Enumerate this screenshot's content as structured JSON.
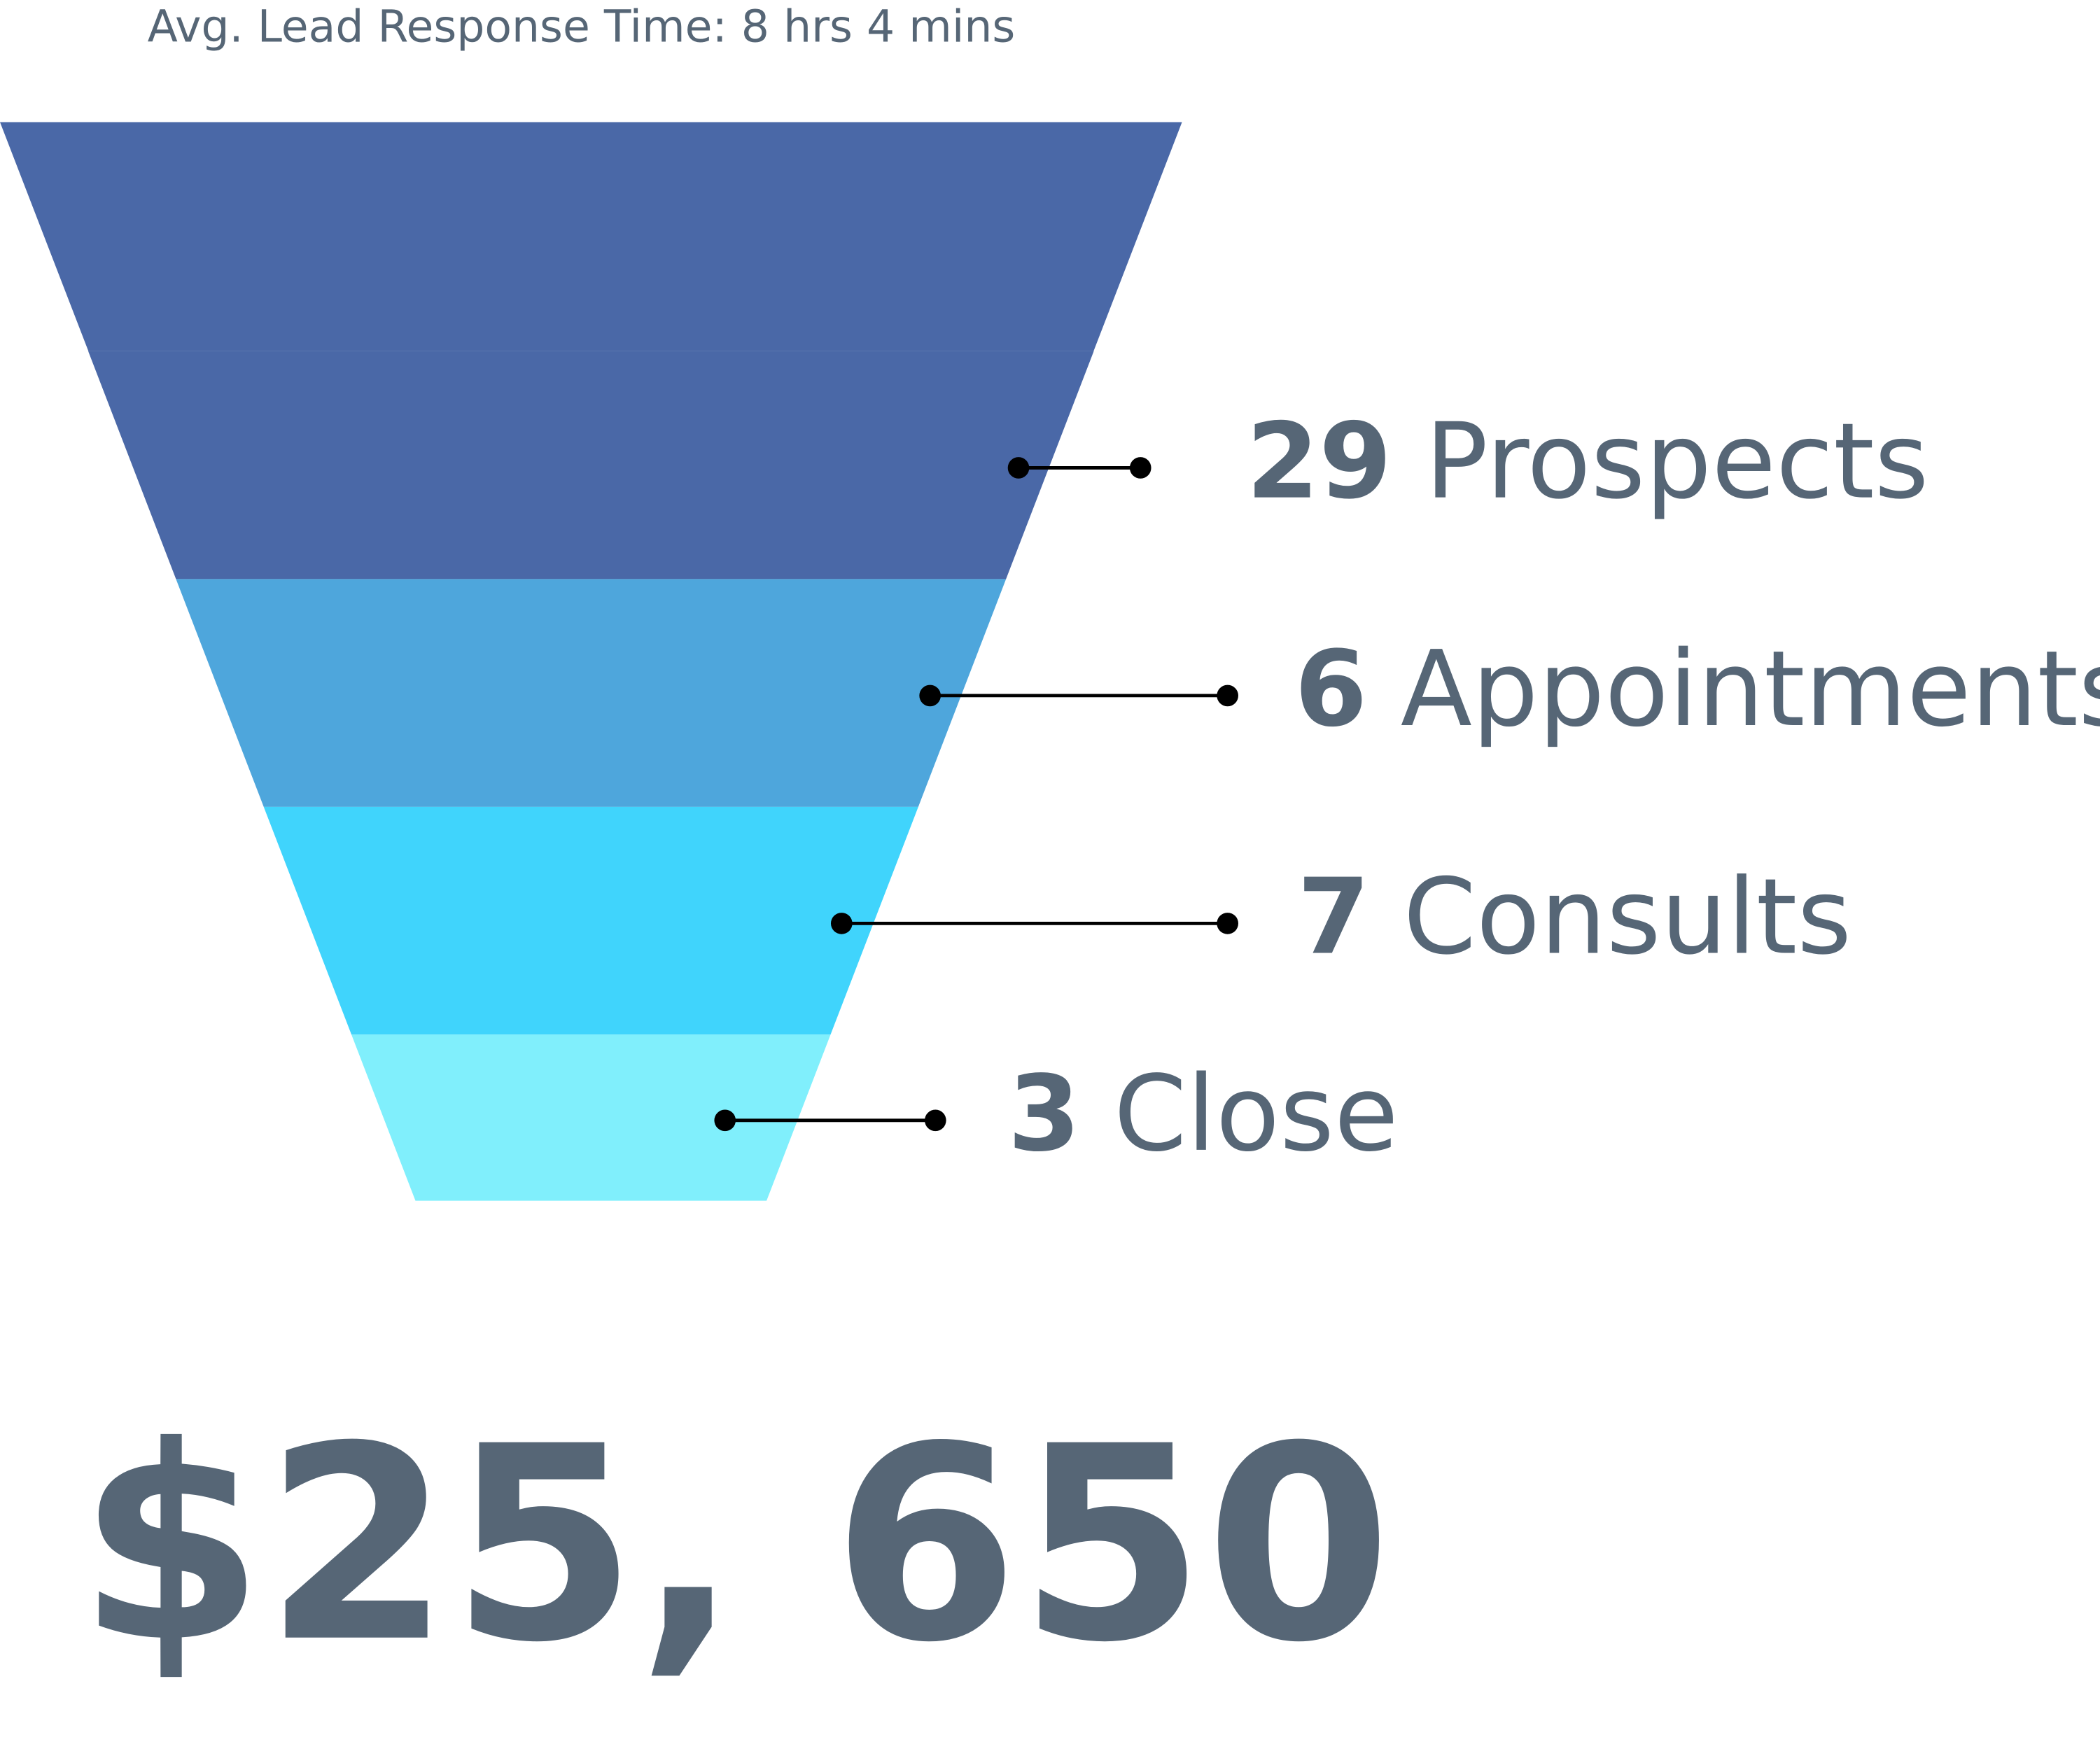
{
  "chart_data": {
    "type": "funnel",
    "subtitle": "Avg. Lead Response Time: 8 hrs 4 mins",
    "categories": [
      "Prospects",
      "Appointments",
      "Consults",
      "Close"
    ],
    "values": [
      29,
      6,
      7,
      3
    ],
    "colors": [
      "#4a68a7",
      "#4ea6dc",
      "#40d4fc",
      "#80effc"
    ],
    "total_label": "$25, 650"
  }
}
